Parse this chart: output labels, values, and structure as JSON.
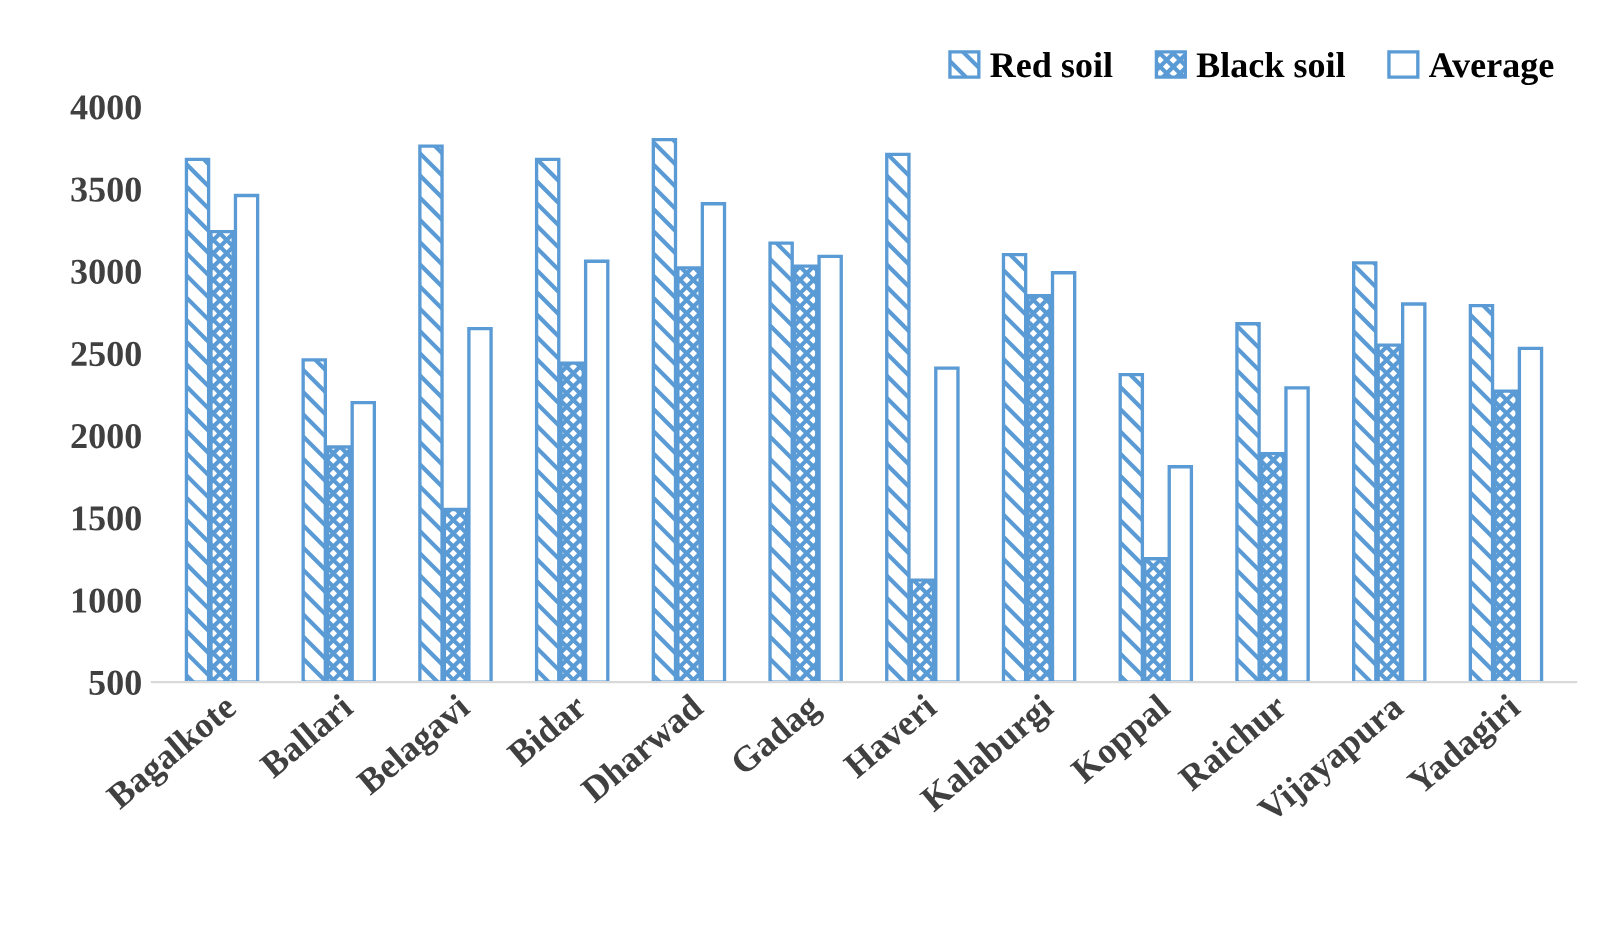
{
  "chart_data": {
    "type": "bar",
    "categories": [
      "Bagalkote",
      "Ballari",
      "Belagavi",
      "Bidar",
      "Dharwad",
      "Gadag",
      "Haveri",
      "Kalaburgi",
      "Koppal",
      "Raichur",
      "Vijayapura",
      "Yadagiri"
    ],
    "series": [
      {
        "name": "Red soil",
        "color": "#5b9bd5",
        "values": [
          3680,
          2460,
          3760,
          3680,
          3800,
          3170,
          3710,
          3100,
          2370,
          2680,
          3050,
          2790
        ]
      },
      {
        "name": "Black soil",
        "color": "#5b9bd5",
        "values": [
          3240,
          1930,
          1550,
          2440,
          3020,
          3030,
          1120,
          2850,
          1250,
          1890,
          2550,
          2270
        ]
      },
      {
        "name": "Average",
        "color": "#5b9bd5",
        "values": [
          3460,
          2200,
          2650,
          3060,
          3410,
          3090,
          2410,
          2990,
          1810,
          2290,
          2800,
          2530
        ]
      }
    ],
    "ylim": [
      500,
      4000
    ],
    "yticks": [
      500,
      1000,
      1500,
      2000,
      2500,
      3000,
      3500,
      4000
    ],
    "grid": false,
    "legend": "top right"
  }
}
